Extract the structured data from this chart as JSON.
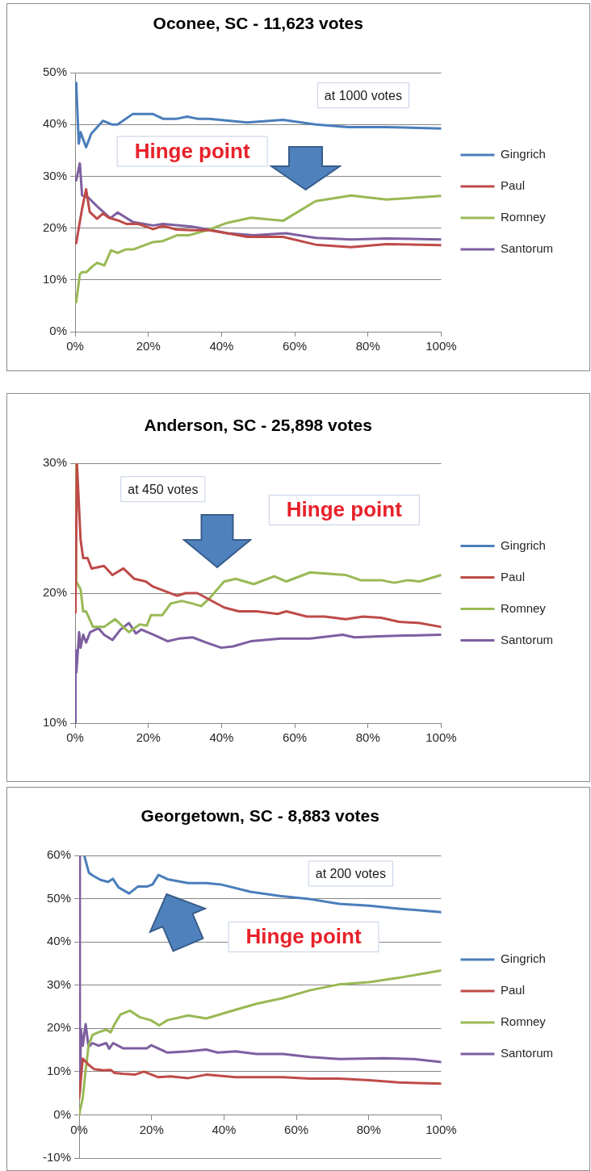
{
  "chart_data": [
    {
      "type": "line",
      "title": "Oconee, SC - 11,623 votes",
      "legend": "right",
      "grid": "y",
      "marker": "none",
      "xlim": [
        0,
        100
      ],
      "xticks": [
        {
          "value": 0,
          "label": "0%"
        },
        {
          "value": 20,
          "label": "20%"
        },
        {
          "value": 40,
          "label": "40%"
        },
        {
          "value": 60,
          "label": "60%"
        },
        {
          "value": 80,
          "label": "80%"
        },
        {
          "value": 100,
          "label": "100%"
        }
      ],
      "ylim": [
        0,
        50
      ],
      "yticks": [
        {
          "value": 0,
          "label": "0%"
        },
        {
          "value": 10,
          "label": "10%"
        },
        {
          "value": 20,
          "label": "20%"
        },
        {
          "value": 30,
          "label": "30%"
        },
        {
          "value": 40,
          "label": "40%"
        },
        {
          "value": 50,
          "label": "50%"
        }
      ],
      "annotations": [
        "at 1000 votes",
        "Hinge point"
      ],
      "series": [
        {
          "name": "Gingrich",
          "color": "#4a7ebb",
          "x": [
            0.3,
            1,
            1.5,
            3,
            4.4,
            7.6,
            10,
            11.6,
            15.7,
            21.3,
            24,
            27.8,
            30.6,
            33.4,
            36.6,
            47,
            56.8,
            65.7,
            74.6,
            85,
            100
          ],
          "values": [
            48,
            36.3,
            38.5,
            35.6,
            38.2,
            40.7,
            40,
            40,
            42,
            42,
            41.1,
            41.1,
            41.5,
            41.1,
            41.1,
            40.4,
            40.9,
            40,
            39.5,
            39.5,
            39.2
          ]
        },
        {
          "name": "Paul",
          "color": "#be4b48",
          "x": [
            0.3,
            1.9,
            3,
            4,
            6,
            7.6,
            9.2,
            11.6,
            14,
            17.3,
            21.3,
            24,
            27.8,
            31.8,
            36.6,
            41.5,
            47,
            56.8,
            65.7,
            75.4,
            85,
            100
          ],
          "values": [
            17.1,
            23.7,
            27.5,
            23.1,
            21.8,
            22.8,
            22,
            21.5,
            20.8,
            20.8,
            19.8,
            20.4,
            19.7,
            19.6,
            19.6,
            19,
            18.3,
            18.3,
            16.8,
            16.3,
            16.9,
            16.7
          ]
        },
        {
          "name": "Romney",
          "color": "#98b954",
          "x": [
            0.3,
            1.3,
            1.9,
            3.1,
            4.4,
            6,
            8,
            9.8,
            11.6,
            14,
            16,
            21.3,
            24,
            27.8,
            31,
            36.6,
            41.5,
            48,
            56.8,
            65.7,
            75.4,
            85,
            100
          ],
          "values": [
            5.7,
            11.1,
            11.5,
            11.5,
            12.4,
            13.3,
            12.8,
            15.7,
            15.2,
            15.9,
            15.9,
            17.3,
            17.5,
            18.6,
            18.6,
            19.7,
            21,
            22,
            21.4,
            25.2,
            26.3,
            25.5,
            26.2
          ]
        },
        {
          "name": "Santorum",
          "color": "#7d5fa0",
          "x": [
            0.3,
            1.3,
            1.9,
            3.6,
            6,
            9.6,
            11.6,
            15.7,
            21.3,
            24,
            31.8,
            36.6,
            41.5,
            48.8,
            57.6,
            65.7,
            75.4,
            85,
            100
          ],
          "values": [
            29.2,
            32.5,
            26.3,
            25.9,
            24.2,
            21.9,
            23,
            21.2,
            20.5,
            20.8,
            20.3,
            19.7,
            19,
            18.6,
            19,
            18.1,
            17.8,
            18,
            17.8
          ]
        }
      ]
    },
    {
      "type": "line",
      "title": "Anderson, SC - 25,898 votes",
      "legend": "right",
      "grid": "y",
      "marker": "none",
      "xlim": [
        0,
        100
      ],
      "xticks": [
        {
          "value": 0,
          "label": "0%"
        },
        {
          "value": 20,
          "label": "20%"
        },
        {
          "value": 40,
          "label": "40%"
        },
        {
          "value": 60,
          "label": "60%"
        },
        {
          "value": 80,
          "label": "80%"
        },
        {
          "value": 100,
          "label": "100%"
        }
      ],
      "ylim": [
        10,
        30
      ],
      "yticks": [
        {
          "value": 10,
          "label": "10%"
        },
        {
          "value": 20,
          "label": "20%"
        },
        {
          "value": 30,
          "label": "30%"
        }
      ],
      "annotations": [
        "at 450 votes",
        "Hinge point"
      ],
      "series": [
        {
          "name": "Gingrich",
          "color": "#4a7ebb"
        },
        {
          "name": "Paul",
          "color": "#be4b48",
          "x": [
            0.1,
            0.5,
            1.5,
            2.2,
            3.4,
            4.5,
            7.9,
            10.2,
            13.2,
            16.2,
            19.3,
            21.3,
            27.8,
            30.2,
            33.4,
            40.7,
            44.7,
            49.6,
            55.3,
            57.7,
            63.3,
            68.2,
            73.9,
            78.7,
            83.6,
            88.5,
            94.1,
            100
          ],
          "values": [
            18.5,
            30,
            24.1,
            22.7,
            22.7,
            21.9,
            22.1,
            21.4,
            21.9,
            21.1,
            20.9,
            20.5,
            19.8,
            20,
            20,
            18.9,
            18.6,
            18.6,
            18.4,
            18.6,
            18.2,
            18.2,
            18,
            18.2,
            18.1,
            17.8,
            17.7,
            17.4
          ]
        },
        {
          "name": "Romney",
          "color": "#98b954",
          "x": [
            0.1,
            0.3,
            1.5,
            2.2,
            3,
            4.9,
            7.9,
            10.9,
            14.7,
            17.7,
            19.6,
            20.7,
            23.8,
            26.1,
            29.1,
            32.1,
            34.4,
            36.7,
            40.7,
            43.9,
            48.8,
            54.4,
            57.7,
            64.2,
            73.9,
            77.9,
            83.6,
            87.2,
            90.9,
            94.1,
            100
          ],
          "values": [
            30,
            20.9,
            20.3,
            18.6,
            18.6,
            17.4,
            17.4,
            18,
            17,
            17.6,
            17.5,
            18.3,
            18.3,
            19.2,
            19.4,
            19.2,
            19,
            19.6,
            20.9,
            21.1,
            20.7,
            21.3,
            20.9,
            21.6,
            21.4,
            21,
            21,
            20.8,
            21,
            20.9,
            21.4
          ]
        },
        {
          "name": "Santorum",
          "color": "#7d5fa0",
          "x": [
            0,
            0.1,
            0.35,
            1.1,
            1.5,
            2.2,
            3,
            4.1,
            6.4,
            7.9,
            10.2,
            12.4,
            14.7,
            16.6,
            18.1,
            21.5,
            25.3,
            28.3,
            32.1,
            35.8,
            39.9,
            43.1,
            48,
            56.1,
            64.2,
            73.1,
            76.3,
            84.4,
            100
          ],
          "values": [
            10,
            15.6,
            13.9,
            17,
            15.8,
            16.8,
            16.2,
            17,
            17.3,
            16.8,
            16.4,
            17.2,
            17.7,
            16.9,
            17.2,
            16.8,
            16.3,
            16.5,
            16.6,
            16.2,
            15.8,
            15.9,
            16.3,
            16.5,
            16.5,
            16.8,
            16.6,
            16.7,
            16.8
          ]
        }
      ]
    },
    {
      "type": "line",
      "title": "Georgetown, SC - 8,883 votes",
      "legend": "right",
      "grid": "y",
      "marker": "none",
      "xlim": [
        0,
        100
      ],
      "xticks": [
        {
          "value": 0,
          "label": "0%"
        },
        {
          "value": 20,
          "label": "20%"
        },
        {
          "value": 40,
          "label": "40%"
        },
        {
          "value": 60,
          "label": "60%"
        },
        {
          "value": 80,
          "label": "80%"
        },
        {
          "value": 100,
          "label": "100%"
        }
      ],
      "ylim": [
        -10,
        60
      ],
      "yticks": [
        {
          "value": -10,
          "label": "-10%"
        },
        {
          "value": 0,
          "label": "0%"
        },
        {
          "value": 10,
          "label": "10%"
        },
        {
          "value": 20,
          "label": "20%"
        },
        {
          "value": 30,
          "label": "30%"
        },
        {
          "value": 40,
          "label": "40%"
        },
        {
          "value": 50,
          "label": "50%"
        },
        {
          "value": 60,
          "label": "60%"
        }
      ],
      "annotations": [
        "at 200 votes",
        "Hinge point"
      ],
      "series": [
        {
          "name": "Gingrich",
          "color": "#4a7ebb",
          "x": [
            1.5,
            2.7,
            3.9,
            6,
            8,
            9.3,
            10.9,
            13.8,
            16.2,
            18.7,
            20.3,
            21.9,
            24.4,
            30.1,
            35.1,
            39.1,
            47.3,
            55.5,
            63.7,
            71.9,
            80.1,
            88.3,
            100
          ],
          "values": [
            59.7,
            56,
            55.3,
            54.3,
            53.9,
            54.6,
            52.6,
            51.2,
            52.8,
            52.8,
            53.3,
            55.5,
            54.5,
            53.6,
            53.6,
            53.3,
            51.6,
            50.6,
            49.9,
            48.8,
            48.4,
            47.7,
            46.9
          ]
        },
        {
          "name": "Paul",
          "color": "#be4b48",
          "x": [
            0,
            1,
            2.6,
            4.1,
            6.8,
            8.7,
            9.8,
            12.1,
            15.4,
            17.9,
            21.9,
            25.2,
            30.1,
            35.1,
            43.2,
            56.3,
            63.7,
            71.9,
            80.1,
            88.3,
            100
          ],
          "values": [
            3.8,
            13,
            11.6,
            10.6,
            10.3,
            10.4,
            9.7,
            9.5,
            9.3,
            10,
            8.7,
            8.9,
            8.5,
            9.3,
            8.7,
            8.7,
            8.4,
            8.4,
            8,
            7.5,
            7.2
          ]
        },
        {
          "name": "Romney",
          "color": "#98b954",
          "x": [
            0,
            1,
            1.8,
            2.6,
            3.7,
            5.3,
            7.5,
            8.7,
            9.8,
            11.4,
            14,
            16.7,
            19.8,
            22.1,
            24.4,
            30.1,
            35.1,
            43.2,
            49,
            56.3,
            63.7,
            71.9,
            80.1,
            88.3,
            100
          ],
          "values": [
            0,
            4,
            10.3,
            16,
            18.5,
            19.1,
            19.7,
            19.1,
            21,
            23.2,
            24.1,
            22.6,
            21.9,
            20.7,
            21.9,
            23,
            22.3,
            24.3,
            25.7,
            27,
            28.8,
            30.2,
            30.7,
            31.7,
            33.4
          ]
        },
        {
          "name": "Santorum",
          "color": "#7d5fa0",
          "x": [
            0,
            0.2,
            0.5,
            1,
            1.8,
            2.6,
            3.7,
            5.3,
            7.5,
            8.3,
            9.4,
            12.1,
            18.7,
            19.9,
            24.4,
            30.1,
            35.1,
            38.3,
            43.2,
            49,
            56.3,
            63.7,
            71.9,
            84.2,
            92.4,
            100
          ],
          "values": [
            60,
            5.3,
            19.8,
            16,
            21,
            15.7,
            16.6,
            16,
            16.6,
            15.3,
            16.6,
            15.4,
            15.4,
            16.1,
            14.4,
            14.7,
            15.1,
            14.4,
            14.7,
            14.1,
            14.1,
            13.4,
            12.9,
            13.1,
            12.9,
            12.2
          ]
        }
      ]
    }
  ]
}
